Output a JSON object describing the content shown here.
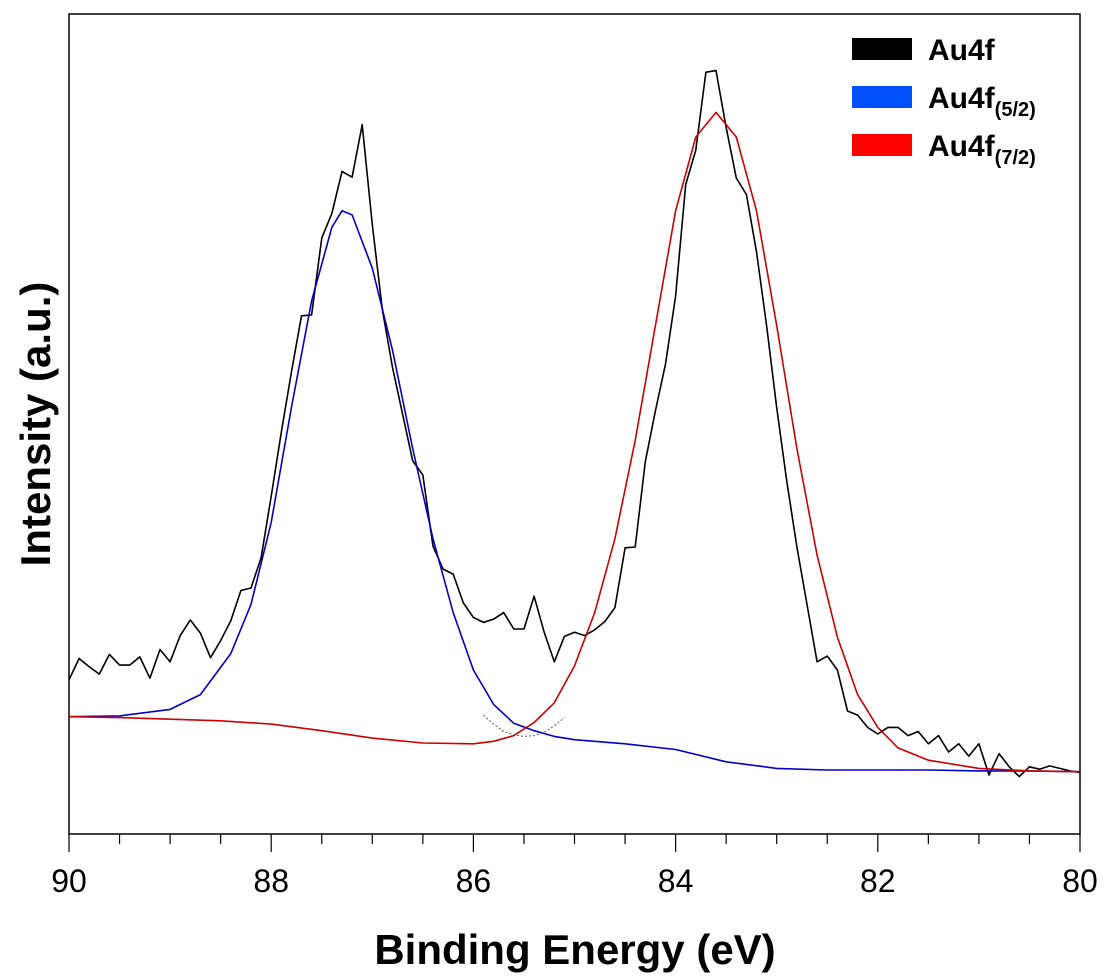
{
  "chart_data": {
    "type": "line",
    "xlabel": "Binding Energy (eV)",
    "ylabel": "Intensity (a.u.)",
    "xlim": [
      90,
      80
    ],
    "x_reversed": true,
    "ylim": [
      0,
      100
    ],
    "y_ticks_labeled": false,
    "x_ticks": [
      90,
      88,
      86,
      84,
      82,
      80
    ],
    "x_minor_step": 0.5,
    "grid": false,
    "legend_position": "top-right",
    "legend": [
      {
        "base": "Au4f",
        "sub": "",
        "color": "#000000"
      },
      {
        "base": "Au4f",
        "sub": "(5/2)",
        "color": "#0050ff"
      },
      {
        "base": "Au4f",
        "sub": "(7/2)",
        "color": "#ff0000"
      }
    ],
    "series": [
      {
        "name": "Au4f",
        "color": "#000000",
        "x": [
          90.0,
          89.9,
          89.8,
          89.7,
          89.6,
          89.5,
          89.4,
          89.3,
          89.2,
          89.1,
          89.0,
          88.9,
          88.8,
          88.7,
          88.6,
          88.5,
          88.4,
          88.3,
          88.2,
          88.1,
          88.0,
          87.9,
          87.8,
          87.7,
          87.6,
          87.5,
          87.4,
          87.3,
          87.2,
          87.1,
          87.0,
          86.9,
          86.8,
          86.7,
          86.6,
          86.5,
          86.4,
          86.3,
          86.2,
          86.1,
          86.0,
          85.9,
          85.8,
          85.7,
          85.6,
          85.5,
          85.4,
          85.3,
          85.2,
          85.1,
          85.0,
          84.9,
          84.8,
          84.7,
          84.6,
          84.5,
          84.4,
          84.3,
          84.2,
          84.1,
          84.0,
          83.9,
          83.8,
          83.7,
          83.6,
          83.5,
          83.4,
          83.3,
          83.2,
          83.1,
          83.0,
          82.9,
          82.8,
          82.7,
          82.6,
          82.5,
          82.4,
          82.3,
          82.2,
          82.1,
          82.0,
          81.9,
          81.8,
          81.7,
          81.6,
          81.5,
          81.4,
          81.3,
          81.2,
          81.1,
          81.0,
          80.9,
          80.8,
          80.7,
          80.6,
          80.5,
          80.4,
          80.3,
          80.2,
          80.1,
          80.0
        ],
        "y": [
          18.8,
          21.4,
          20.4,
          19.5,
          21.9,
          20.6,
          20.6,
          21.6,
          19.0,
          22.5,
          21.0,
          24.2,
          26.1,
          24.5,
          21.5,
          23.6,
          26.0,
          29.7,
          30.0,
          33.7,
          41.2,
          49.0,
          56.3,
          63.2,
          63.3,
          72.7,
          75.7,
          80.8,
          80.1,
          86.5,
          74.3,
          63.9,
          56.9,
          51.2,
          45.5,
          43.8,
          35.1,
          32.3,
          31.7,
          28.2,
          26.4,
          25.8,
          26.2,
          27.0,
          25.0,
          25.0,
          29.0,
          24.6,
          21.0,
          24.1,
          24.6,
          24.2,
          24.9,
          25.9,
          27.6,
          34.9,
          35.0,
          45.4,
          51.6,
          57.3,
          65.6,
          79.2,
          83.4,
          92.9,
          93.1,
          86.2,
          80.0,
          78.0,
          71.0,
          62.0,
          52.0,
          43.0,
          35.0,
          28.0,
          21.0,
          21.7,
          20.0,
          15.0,
          14.5,
          13.0,
          12.2,
          13.0,
          13.0,
          12.0,
          12.5,
          11.0,
          12.0,
          10.0,
          11.0,
          9.5,
          11.0,
          7.2,
          9.8,
          8.2,
          7.0,
          8.2,
          7.9,
          8.3,
          8.0,
          7.7,
          7.5
        ]
      },
      {
        "name": "Au4f(5/2)",
        "color": "#0000cc",
        "x": [
          90.0,
          89.5,
          89.0,
          88.7,
          88.4,
          88.2,
          88.0,
          87.8,
          87.6,
          87.4,
          87.3,
          87.2,
          87.0,
          86.8,
          86.6,
          86.4,
          86.2,
          86.0,
          85.8,
          85.6,
          85.4,
          85.2,
          85.0,
          84.5,
          84.0,
          83.5,
          83.0,
          82.5,
          82.0,
          81.5,
          81.0,
          80.5,
          80.0
        ],
        "y": [
          14.3,
          14.4,
          15.2,
          17.0,
          22.0,
          28.0,
          38.0,
          52.0,
          65.0,
          74.0,
          76.0,
          75.5,
          69.0,
          59.0,
          47.0,
          36.0,
          27.0,
          20.0,
          15.8,
          13.5,
          12.6,
          11.9,
          11.5,
          11.0,
          10.3,
          8.8,
          8.0,
          7.8,
          7.8,
          7.8,
          7.7,
          7.7,
          7.6
        ]
      },
      {
        "name": "Au4f(7/2)",
        "color": "#cc0000",
        "x": [
          90.0,
          89.5,
          89.0,
          88.5,
          88.0,
          87.5,
          87.0,
          86.5,
          86.0,
          85.8,
          85.6,
          85.4,
          85.2,
          85.0,
          84.8,
          84.6,
          84.4,
          84.2,
          84.0,
          83.8,
          83.6,
          83.4,
          83.2,
          83.0,
          82.8,
          82.6,
          82.4,
          82.2,
          82.0,
          81.8,
          81.5,
          81.0,
          80.5,
          80.0
        ],
        "y": [
          14.3,
          14.2,
          14.0,
          13.8,
          13.4,
          12.6,
          11.7,
          11.1,
          11.0,
          11.3,
          12.0,
          13.6,
          16.0,
          20.5,
          27.0,
          36.0,
          48.0,
          62.0,
          76.0,
          85.0,
          88.0,
          85.0,
          76.0,
          62.0,
          47.0,
          34.0,
          24.0,
          17.0,
          13.0,
          10.5,
          9.0,
          8.0,
          7.7,
          7.6
        ]
      },
      {
        "name": "Au4f envelope",
        "color": "#555555",
        "dashed": true,
        "x": [
          85.9,
          85.8,
          85.7,
          85.6,
          85.5,
          85.4,
          85.3,
          85.2,
          85.1
        ],
        "y": [
          14.5,
          13.4,
          12.5,
          12.1,
          11.9,
          12.0,
          12.4,
          13.2,
          14.2
        ]
      }
    ]
  }
}
